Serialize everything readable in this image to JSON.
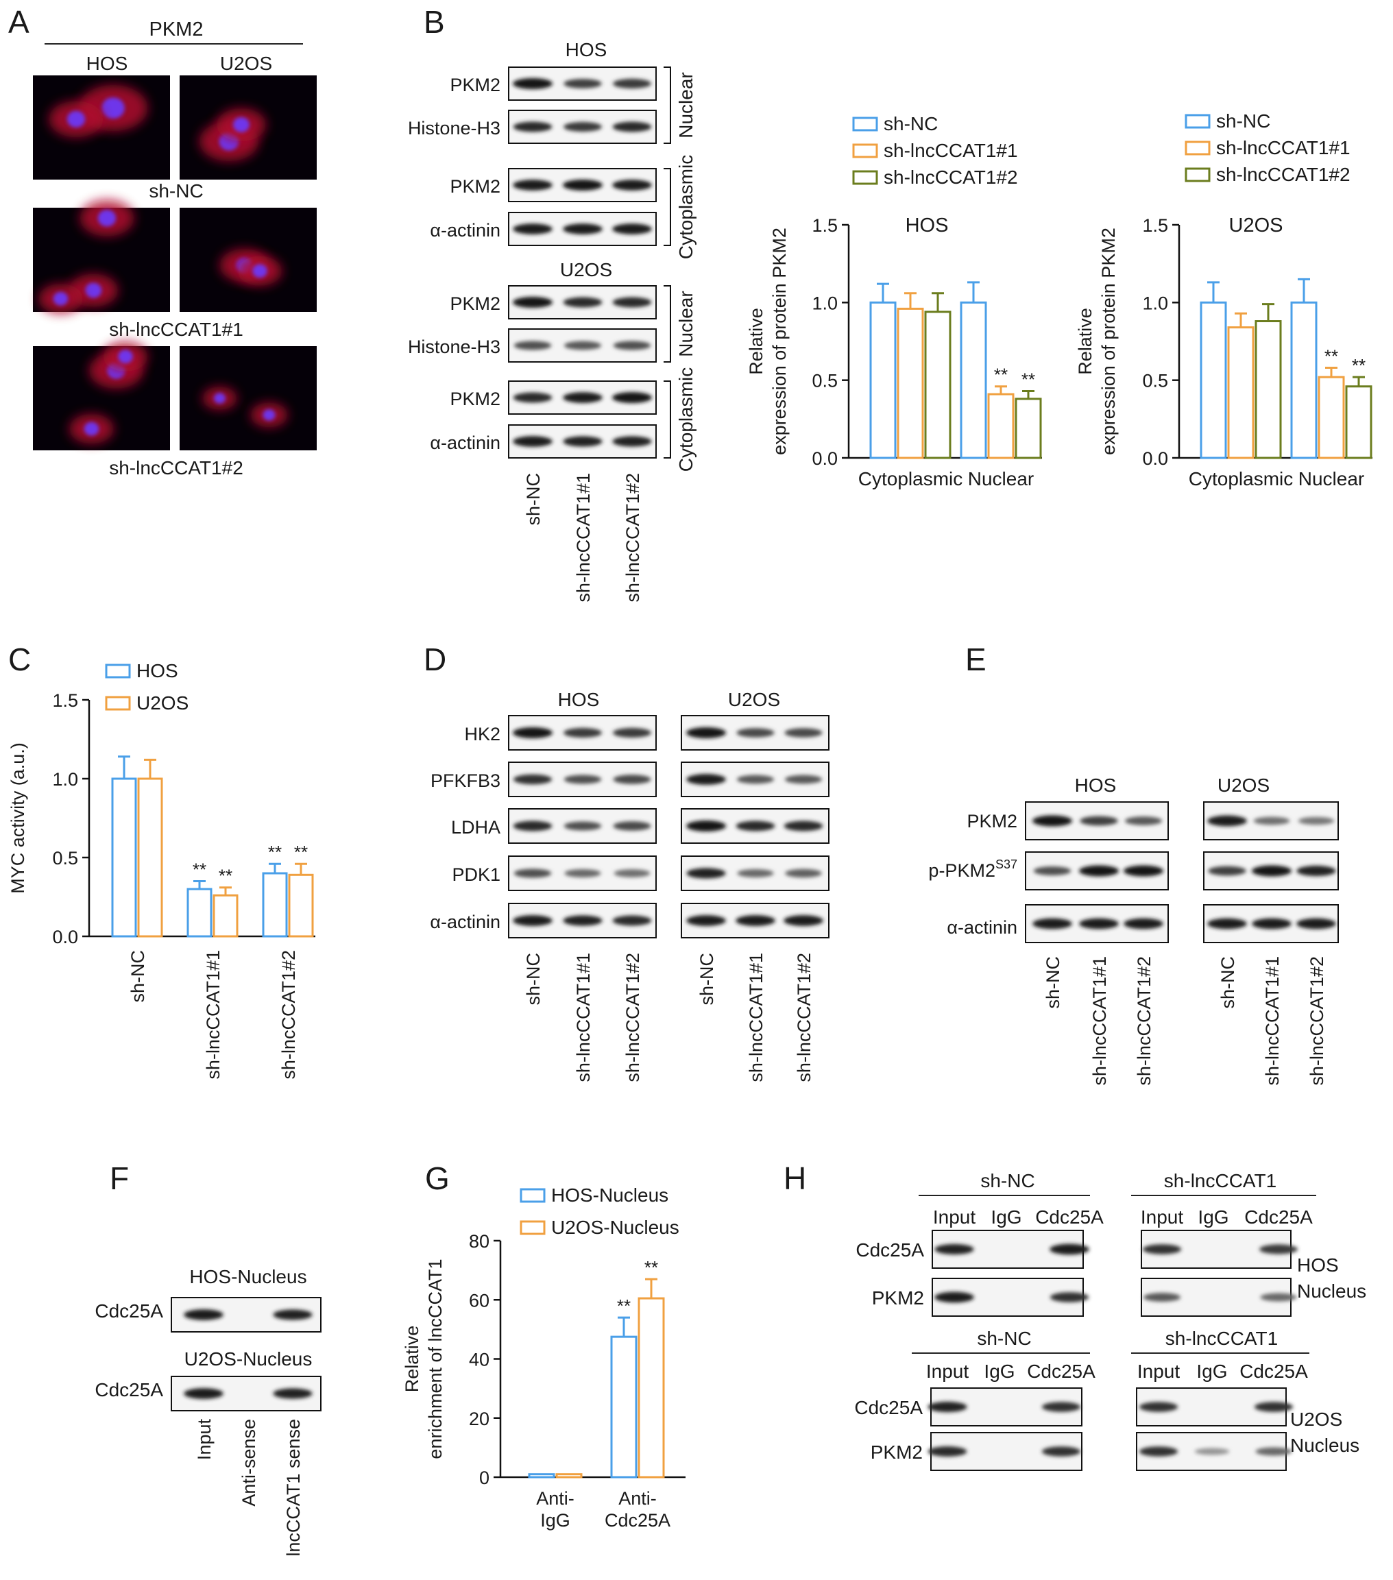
{
  "panel_letters": [
    "A",
    "B",
    "C",
    "D",
    "E",
    "F",
    "G",
    "H"
  ],
  "colors": {
    "sh_nc": "#4a9fe8",
    "sh1": "#f0a040",
    "sh2": "#6b7d1e",
    "hos": "#4a9fe8",
    "u2os": "#f0a040"
  },
  "panelA": {
    "header": "PKM2",
    "cols": [
      "HOS",
      "U2OS"
    ],
    "rows": [
      "sh-NC",
      "sh-lncCCAT1#1",
      "sh-lncCCAT1#2"
    ]
  },
  "panelB": {
    "cell_lines": [
      "HOS",
      "U2OS"
    ],
    "blots": [
      {
        "label": "PKM2",
        "group": 0
      },
      {
        "label": "Histone-H3",
        "group": 0
      },
      {
        "label": "PKM2",
        "group": 1
      },
      {
        "label": "α-actinin",
        "group": 1
      },
      {
        "label": "PKM2",
        "group": 2
      },
      {
        "label": "Histone-H3",
        "group": 2
      },
      {
        "label": "PKM2",
        "group": 3
      },
      {
        "label": "α-actinin",
        "group": 3
      }
    ],
    "fractions": [
      "Nuclear",
      "Cytoplasmic",
      "Nuclear",
      "Cytoplasmic"
    ],
    "lanes": [
      "sh-NC",
      "sh-lncCCAT1#1",
      "sh-lncCCAT1#2"
    ]
  },
  "chart_data": [
    {
      "type": "bar",
      "panel": "B-HOS",
      "title": "HOS",
      "ylabel": "Relative expression of protein PKM2",
      "ylabel_lines": [
        "Relative",
        "expression of protein PKM2"
      ],
      "ylim": [
        0,
        1.5
      ],
      "yticks": [
        "0.0",
        "0.5",
        "1.0",
        "1.5"
      ],
      "categories": [
        "Cytoplasmic",
        "Nuclear"
      ],
      "series": [
        {
          "name": "sh-NC",
          "values": [
            1.0,
            1.0
          ],
          "errors": [
            0.12,
            0.13
          ],
          "sig": [
            "",
            ""
          ]
        },
        {
          "name": "sh-lncCCAT1#1",
          "values": [
            0.96,
            0.41
          ],
          "errors": [
            0.1,
            0.05
          ],
          "sig": [
            "",
            "**"
          ]
        },
        {
          "name": "sh-lncCCAT1#2",
          "values": [
            0.94,
            0.38
          ],
          "errors": [
            0.12,
            0.05
          ],
          "sig": [
            "",
            "**"
          ]
        }
      ],
      "legend_position": "top"
    },
    {
      "type": "bar",
      "panel": "B-U2OS",
      "title": "U2OS",
      "ylabel": "Relative expression of protein PKM2",
      "ylabel_lines": [
        "Relative",
        "expression of protein PKM2"
      ],
      "ylim": [
        0,
        1.5
      ],
      "yticks": [
        "0.0",
        "0.5",
        "1.0",
        "1.5"
      ],
      "categories": [
        "Cytoplasmic",
        "Nuclear"
      ],
      "series": [
        {
          "name": "sh-NC",
          "values": [
            1.0,
            1.0
          ],
          "errors": [
            0.13,
            0.15
          ],
          "sig": [
            "",
            ""
          ]
        },
        {
          "name": "sh-lncCCAT1#1",
          "values": [
            0.84,
            0.52
          ],
          "errors": [
            0.09,
            0.06
          ],
          "sig": [
            "",
            "**"
          ]
        },
        {
          "name": "sh-lncCCAT1#2",
          "values": [
            0.88,
            0.46
          ],
          "errors": [
            0.11,
            0.06
          ],
          "sig": [
            "",
            "**"
          ]
        }
      ],
      "legend_position": "top"
    },
    {
      "type": "bar",
      "panel": "C",
      "ylabel": "MYC activity (a.u.)",
      "ylim": [
        0,
        1.5
      ],
      "yticks": [
        "0.0",
        "0.5",
        "1.0",
        "1.5"
      ],
      "categories": [
        "sh-NC",
        "sh-lncCCAT1#1",
        "sh-lncCCAT1#2"
      ],
      "series": [
        {
          "name": "HOS",
          "values": [
            1.0,
            0.3,
            0.4
          ],
          "errors": [
            0.14,
            0.05,
            0.06
          ],
          "sig": [
            "",
            "**",
            "**"
          ]
        },
        {
          "name": "U2OS",
          "values": [
            1.0,
            0.26,
            0.39
          ],
          "errors": [
            0.12,
            0.05,
            0.07
          ],
          "sig": [
            "",
            "**",
            "**"
          ]
        }
      ],
      "legend_position": "top-left"
    },
    {
      "type": "bar",
      "panel": "G",
      "ylabel": "Relative enrichment of lncCCAT1",
      "ylabel_lines": [
        "Relative",
        "enrichment of lncCCAT1"
      ],
      "ylim": [
        0,
        80
      ],
      "yticks": [
        "0",
        "20",
        "40",
        "60",
        "80"
      ],
      "categories": [
        "Anti-IgG",
        "Anti-Cdc25A"
      ],
      "category_lines": [
        [
          "Anti-",
          "IgG"
        ],
        [
          "Anti-",
          "Cdc25A"
        ]
      ],
      "series": [
        {
          "name": "HOS-Nucleus",
          "values": [
            1.0,
            47.5
          ],
          "errors": [
            0,
            6.5
          ],
          "sig": [
            "",
            "**"
          ]
        },
        {
          "name": "U2OS-Nucleus",
          "values": [
            1.0,
            60.5
          ],
          "errors": [
            0,
            6.5
          ],
          "sig": [
            "",
            "**"
          ]
        }
      ],
      "legend_position": "top"
    }
  ],
  "panelD": {
    "cell_lines": [
      "HOS",
      "U2OS"
    ],
    "rows": [
      "HK2",
      "PFKFB3",
      "LDHA",
      "PDK1",
      "α-actinin"
    ],
    "lanes": [
      "sh-NC",
      "sh-lncCCAT1#1",
      "sh-lncCCAT1#2"
    ]
  },
  "panelE": {
    "cell_lines": [
      "HOS",
      "U2OS"
    ],
    "rows": [
      "PKM2",
      "p-PKM2",
      "α-actinin"
    ],
    "phospho_sup": "S37",
    "lanes": [
      "sh-NC",
      "sh-lncCCAT1#1",
      "sh-lncCCAT1#2"
    ]
  },
  "panelF": {
    "headers": [
      "HOS-Nucleus",
      "U2OS-Nucleus"
    ],
    "row_label": "Cdc25A",
    "lanes": [
      "Input",
      "Anti-sense",
      "lncCCAT1 sense"
    ]
  },
  "panelH": {
    "groups": [
      "sh-NC",
      "sh-lncCCAT1"
    ],
    "lane_labels": [
      "Input",
      "IgG",
      "Cdc25A"
    ],
    "rows": [
      "Cdc25A",
      "PKM2"
    ],
    "side_hos": [
      "HOS",
      "Nucleus"
    ],
    "side_u2os": [
      "U2OS",
      "Nucleus"
    ]
  }
}
